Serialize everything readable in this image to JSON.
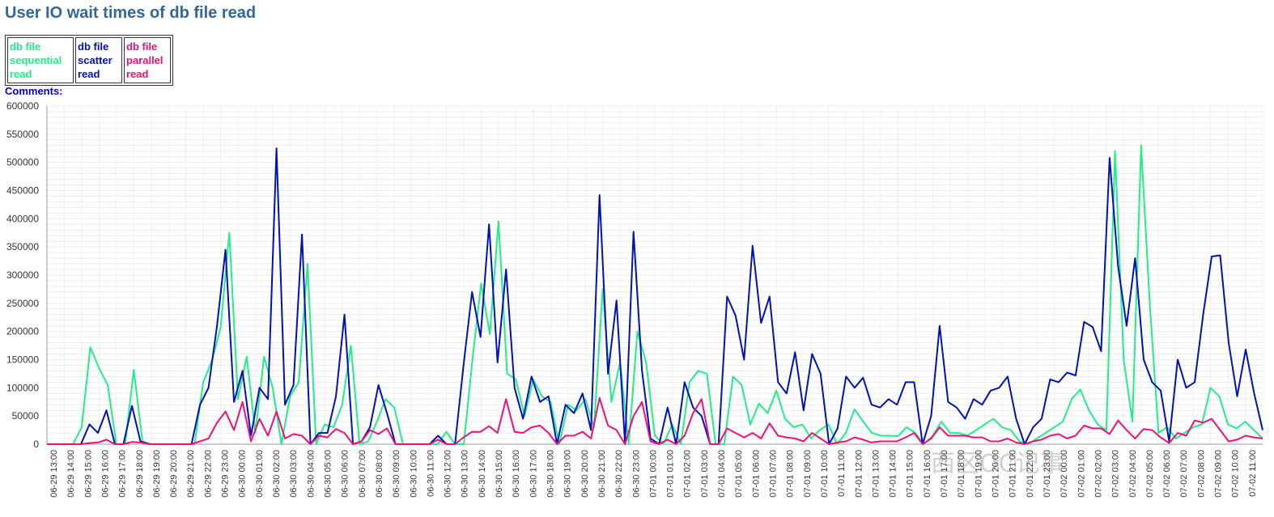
{
  "page": {
    "title": "User IO wait times of db file read",
    "comments_label": "Comments:"
  },
  "watermark": "西区OC记事",
  "chart_data": {
    "type": "line",
    "title": "User IO wait times of db file read",
    "ylim": [
      0,
      600000
    ],
    "y_ticks": [
      0,
      50000,
      100000,
      150000,
      200000,
      250000,
      300000,
      350000,
      400000,
      450000,
      500000,
      550000,
      600000
    ],
    "grid": true,
    "legend_placement": "top-left",
    "x_labels": [
      "06-29 13:00",
      "06-29 14:00",
      "06-29 15:00",
      "06-29 16:00",
      "06-29 17:00",
      "06-29 18:00",
      "06-29 19:00",
      "06-29 20:00",
      "06-29 21:00",
      "06-29 22:00",
      "06-29 23:00",
      "06-30 00:00",
      "06-30 01:00",
      "06-30 02:00",
      "06-30 03:00",
      "06-30 04:00",
      "06-30 05:00",
      "06-30 06:00",
      "06-30 07:00",
      "06-30 08:00",
      "06-30 09:00",
      "06-30 10:00",
      "06-30 11:00",
      "06-30 12:00",
      "06-30 13:00",
      "06-30 14:00",
      "06-30 15:00",
      "06-30 16:00",
      "06-30 17:00",
      "06-30 18:00",
      "06-30 19:00",
      "06-30 20:00",
      "06-30 21:00",
      "06-30 22:00",
      "06-30 23:00",
      "07-01 00:00",
      "07-01 01:00",
      "07-01 02:00",
      "07-01 03:00",
      "07-01 04:00",
      "07-01 05:00",
      "07-01 06:00",
      "07-01 07:00",
      "07-01 08:00",
      "07-01 09:00",
      "07-01 10:00",
      "07-01 11:00",
      "07-01 12:00",
      "07-01 13:00",
      "07-01 14:00",
      "07-01 15:00",
      "07-01 16:00",
      "07-01 17:00",
      "07-01 18:00",
      "07-01 19:00",
      "07-01 20:00",
      "07-01 21:00",
      "07-01 22:00",
      "07-01 23:00",
      "07-02 00:00",
      "07-02 01:00",
      "07-02 02:00",
      "07-02 03:00",
      "07-02 04:00",
      "07-02 05:00",
      "07-02 06:00",
      "07-02 07:00",
      "07-02 08:00",
      "07-02 09:00",
      "07-02 10:00",
      "07-02 11:00"
    ],
    "series": [
      {
        "name": "db file sequential read",
        "color": "#22ee88",
        "values": [
          0,
          0,
          0,
          0,
          30000,
          172000,
          135000,
          105000,
          0,
          0,
          132000,
          5000,
          0,
          0,
          0,
          0,
          0,
          0,
          110000,
          148000,
          207000,
          375000,
          80000,
          155000,
          20000,
          155000,
          100000,
          0,
          85000,
          110000,
          320000,
          0,
          35000,
          30000,
          70000,
          175000,
          0,
          5000,
          40000,
          80000,
          65000,
          0,
          0,
          0,
          0,
          0,
          22000,
          0,
          0,
          150000,
          285000,
          195000,
          395000,
          125000,
          115000,
          50000,
          115000,
          85000,
          75000,
          0,
          70000,
          60000,
          80000,
          30000,
          275000,
          75000,
          145000,
          0,
          200000,
          145000,
          15000,
          0,
          35000,
          0,
          110000,
          130000,
          125000,
          0,
          0,
          120000,
          105000,
          35000,
          72000,
          55000,
          95000,
          45000,
          30000,
          35000,
          10000,
          25000,
          35000,
          0,
          20000,
          62000,
          40000,
          20000,
          15000,
          15000,
          14000,
          30000,
          20000,
          0,
          15000,
          40000,
          20000,
          20000,
          15000,
          25000,
          35000,
          45000,
          30000,
          25000,
          5000,
          0,
          10000,
          20000,
          30000,
          40000,
          80000,
          97000,
          60000,
          35000,
          25000,
          520000,
          150000,
          40000,
          530000,
          250000,
          20000,
          30000,
          10000,
          20000,
          30000,
          35000,
          100000,
          85000,
          35000,
          28000,
          40000,
          25000,
          10000
        ],
        "description": "values in wait-time units per sample"
      },
      {
        "name": "db file scatter read",
        "color": "#0011bb",
        "values": [
          0,
          0,
          0,
          0,
          0,
          35000,
          20000,
          60000,
          0,
          0,
          68000,
          5000,
          0,
          0,
          0,
          0,
          0,
          0,
          70000,
          100000,
          210000,
          345000,
          75000,
          130000,
          15000,
          100000,
          80000,
          525000,
          70000,
          105000,
          372000,
          0,
          20000,
          20000,
          85000,
          230000,
          0,
          5000,
          30000,
          105000,
          55000,
          0,
          0,
          0,
          0,
          0,
          15000,
          0,
          0,
          140000,
          270000,
          190000,
          390000,
          145000,
          310000,
          100000,
          45000,
          120000,
          75000,
          85000,
          0,
          70000,
          55000,
          90000,
          25000,
          442000,
          125000,
          255000,
          0,
          377000,
          130000,
          10000,
          0,
          65000,
          0,
          110000,
          65000,
          50000,
          0,
          0,
          262000,
          228000,
          150000,
          352000,
          215000,
          262000,
          110000,
          90000,
          163000,
          60000,
          160000,
          125000,
          0,
          28000,
          120000,
          100000,
          118000,
          70000,
          65000,
          80000,
          70000,
          110000,
          110000,
          0,
          50000,
          210000,
          75000,
          65000,
          45000,
          80000,
          70000,
          95000,
          100000,
          120000,
          45000,
          0,
          30000,
          45000,
          115000,
          110000,
          127000,
          122000,
          217000,
          208000,
          165000,
          508000,
          315000,
          210000,
          330000,
          150000,
          110000,
          95000,
          5000,
          150000,
          100000,
          110000,
          230000,
          333000,
          335000,
          180000,
          85000,
          168000,
          90000,
          25000
        ]
      },
      {
        "name": "db file parallel read",
        "color": "#ee1177",
        "values": [
          0,
          0,
          0,
          0,
          0,
          2000,
          3000,
          8000,
          0,
          0,
          4000,
          3000,
          0,
          0,
          0,
          0,
          0,
          0,
          5000,
          10000,
          38000,
          58000,
          25000,
          75000,
          5000,
          45000,
          15000,
          58000,
          10000,
          18000,
          15000,
          0,
          15000,
          12000,
          27000,
          20000,
          0,
          5000,
          25000,
          18000,
          28000,
          0,
          0,
          0,
          0,
          0,
          8000,
          0,
          0,
          12000,
          22000,
          22000,
          32000,
          20000,
          80000,
          22000,
          20000,
          30000,
          33000,
          20000,
          0,
          15000,
          15000,
          22000,
          10000,
          82000,
          33000,
          25000,
          0,
          50000,
          75000,
          5000,
          0,
          8000,
          0,
          15000,
          55000,
          80000,
          0,
          0,
          28000,
          20000,
          12000,
          20000,
          10000,
          37000,
          15000,
          12000,
          10000,
          5000,
          20000,
          10000,
          0,
          3000,
          5000,
          12000,
          8000,
          3000,
          5000,
          5000,
          5000,
          12000,
          20000,
          0,
          10000,
          30000,
          15000,
          15000,
          15000,
          12000,
          12000,
          5000,
          5000,
          10000,
          3000,
          0,
          5000,
          8000,
          15000,
          18000,
          10000,
          15000,
          33000,
          28000,
          28000,
          18000,
          42000,
          25000,
          10000,
          27000,
          25000,
          12000,
          2000,
          20000,
          15000,
          42000,
          38000,
          45000,
          25000,
          5000,
          8000,
          15000,
          12000,
          10000
        ]
      }
    ]
  }
}
